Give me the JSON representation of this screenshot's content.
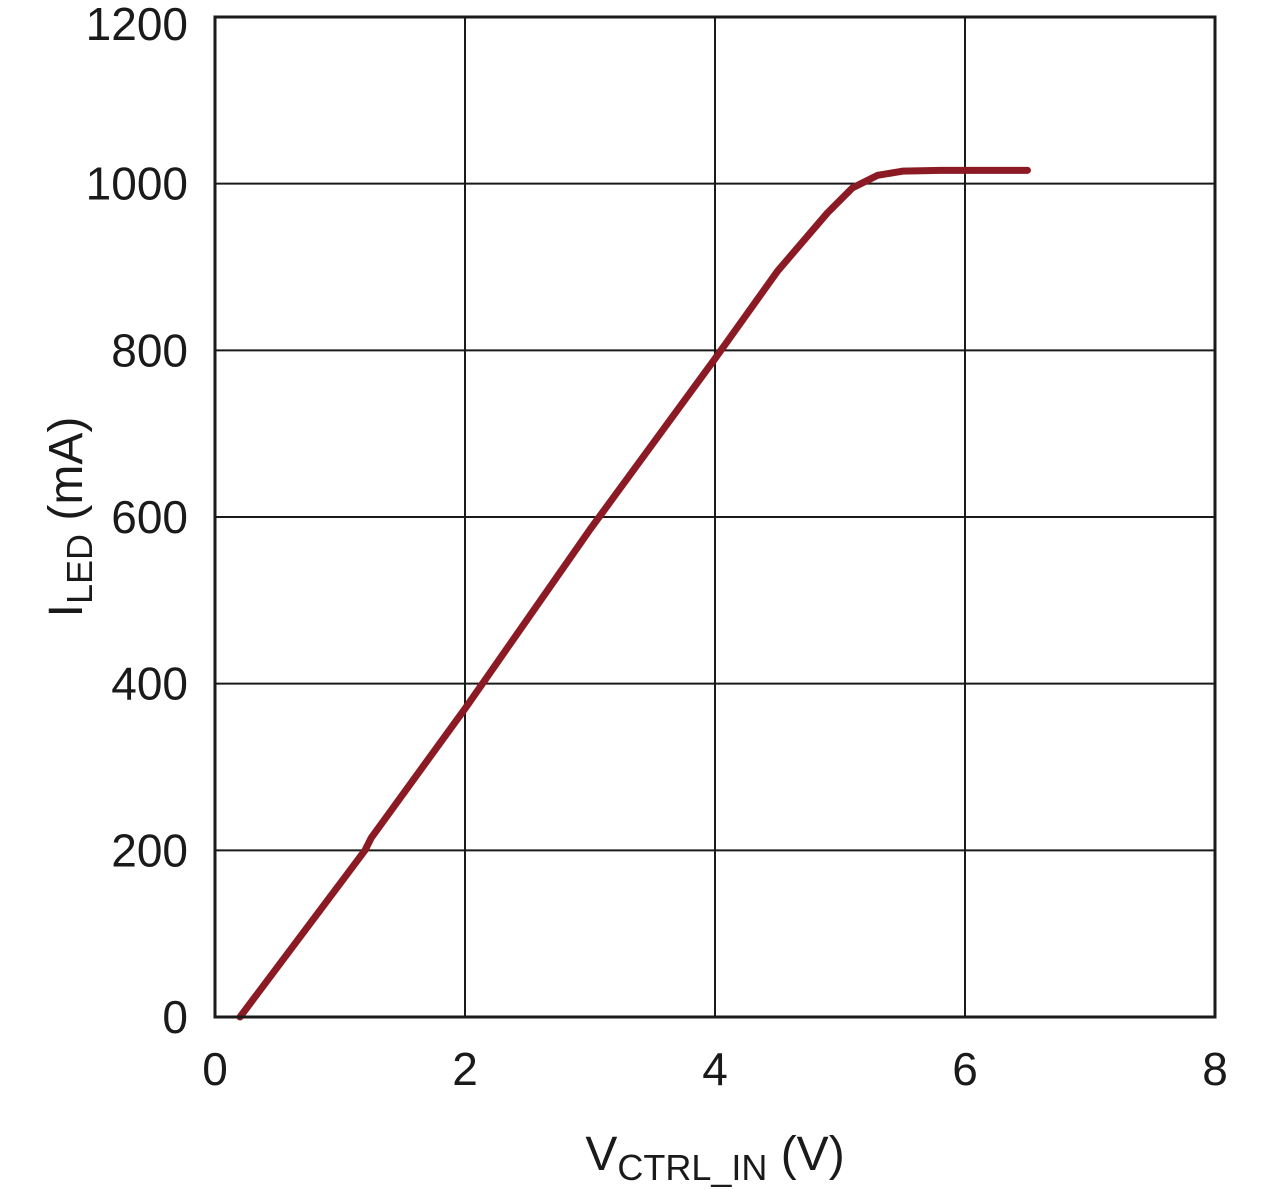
{
  "chart_data": {
    "type": "line",
    "title": "",
    "xlabel": {
      "main": "V",
      "sub": "CTRL_IN",
      "unit": " (V)"
    },
    "ylabel": {
      "main": "I",
      "sub": "LED",
      "unit": " (mA)"
    },
    "xlim": [
      0,
      8
    ],
    "ylim": [
      0,
      1200
    ],
    "xticks": [
      0,
      2,
      4,
      6,
      8
    ],
    "yticks": [
      0,
      200,
      400,
      600,
      800,
      1000,
      1200
    ],
    "xtick_labels": [
      "0",
      "2",
      "4",
      "6",
      "8"
    ],
    "ytick_labels": [
      "0",
      "200",
      "400",
      "600",
      "800",
      "1000",
      "1200"
    ],
    "grid": true,
    "series": [
      {
        "color": "#8b1a24",
        "x": [
          0.2,
          0.6,
          1.0,
          1.2,
          1.25,
          2.0,
          3.0,
          4.0,
          4.5,
          4.9,
          5.1,
          5.3,
          5.5,
          5.8,
          6.0,
          6.5
        ],
        "y": [
          0,
          80,
          160,
          200,
          215,
          370,
          585,
          790,
          895,
          965,
          995,
          1010,
          1015,
          1016,
          1016,
          1016
        ]
      }
    ]
  }
}
